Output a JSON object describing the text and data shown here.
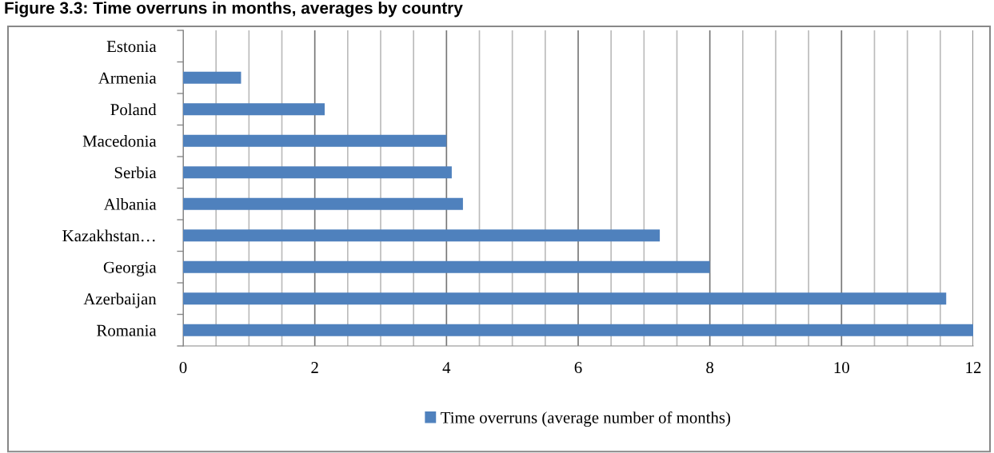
{
  "chart_data": {
    "type": "bar",
    "orientation": "horizontal",
    "title": "Figure 3.3: Time overruns in months, averages by country",
    "categories": [
      "Estonia",
      "Armenia",
      "Poland",
      "Macedonia",
      "Serbia",
      "Albania",
      "Kazakhstan…",
      "Georgia",
      "Azerbaijan",
      "Romania"
    ],
    "series": [
      {
        "name": "Time overruns (average number of months)",
        "color": "#4f81bd",
        "values": [
          0,
          0.88,
          2.15,
          4.0,
          4.08,
          4.25,
          7.24,
          8.0,
          11.59,
          12.0
        ]
      }
    ],
    "xlim": [
      0,
      12
    ],
    "xticks": [
      0,
      {
        "value": 0.5,
        "label": null
      },
      {
        "value": 1,
        "label": null
      },
      {
        "value": 1.5,
        "label": null
      },
      2,
      {
        "value": 2.5,
        "label": null
      },
      {
        "value": 3,
        "label": null
      },
      {
        "value": 3.5,
        "label": null
      },
      4,
      {
        "value": 4.5,
        "label": null
      },
      {
        "value": 5,
        "label": null
      },
      {
        "value": 5.5,
        "label": null
      },
      6,
      {
        "value": 6.5,
        "label": null
      },
      {
        "value": 7,
        "label": null
      },
      {
        "value": 7.5,
        "label": null
      },
      8,
      {
        "value": 8.5,
        "label": null
      },
      {
        "value": 9,
        "label": null
      },
      {
        "value": 9.5,
        "label": null
      },
      10,
      {
        "value": 10.5,
        "label": null
      },
      {
        "value": 11,
        "label": null
      },
      {
        "value": 11.5,
        "label": null
      },
      12
    ],
    "grid": "x",
    "legend": "bottom"
  }
}
